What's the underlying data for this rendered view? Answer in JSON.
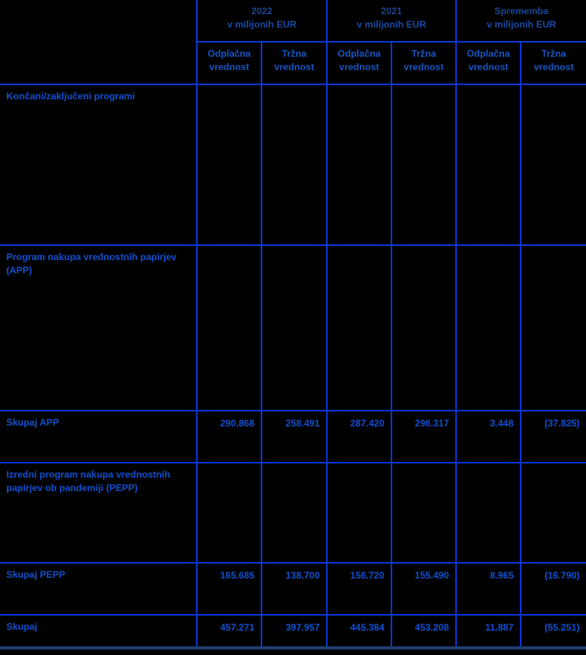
{
  "table": {
    "column_groups": [
      {
        "title": "2022",
        "unit": "v milijonih EUR"
      },
      {
        "title": "2021",
        "unit": "v milijonih EUR"
      },
      {
        "title": "Sprememba",
        "unit": "v milijonih EUR"
      }
    ],
    "subheaders": [
      "Odplačna vrednost",
      "Tržna vrednost",
      "Odplačna vrednost",
      "Tržna vrednost",
      "Odplačna vrednost",
      "Tržna vrednost"
    ],
    "rows": [
      {
        "label": "Končani/zaključeni programi",
        "values": [
          "",
          "",
          "",
          "",
          "",
          ""
        ]
      },
      {
        "label": "Program nakupa vrednostnih papirjev (APP)",
        "values": [
          "",
          "",
          "",
          "",
          "",
          ""
        ]
      },
      {
        "label": "Skupaj APP",
        "values": [
          "290.868",
          "258.491",
          "287.420",
          "296.317",
          "3.448",
          "(37.825)"
        ]
      },
      {
        "label": "Izredni program nakupa vrednostnih papirjev ob pandemiji (PEPP)",
        "values": [
          "",
          "",
          "",
          "",
          "",
          ""
        ]
      },
      {
        "label": "Skupaj PEPP",
        "values": [
          "165.685",
          "138.700",
          "156.720",
          "155.490",
          "8.965",
          "(16.790)"
        ]
      },
      {
        "label": "Skupaj",
        "values": [
          "457.271",
          "397.957",
          "445.384",
          "453.208",
          "11.887",
          "(55.251)"
        ]
      }
    ]
  },
  "colors": {
    "background": "#000000",
    "grid_line": "#0a36d6",
    "text": "#1250cf",
    "group_header_text": "#1b4690",
    "bottom_rule": "#203f73"
  }
}
